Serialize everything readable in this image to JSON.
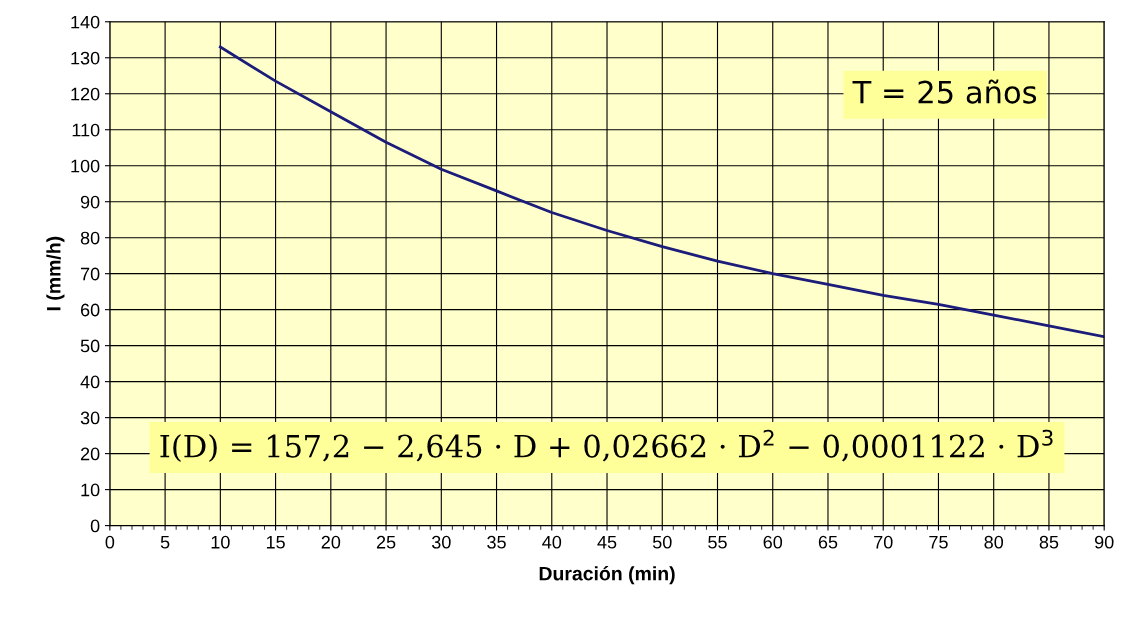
{
  "chart_data": {
    "type": "line",
    "xlabel": "Duración (min)",
    "ylabel": "I (mm/h)",
    "x": [
      10,
      15,
      20,
      25,
      30,
      35,
      40,
      45,
      50,
      55,
      60,
      65,
      70,
      75,
      80,
      85,
      90
    ],
    "values": [
      133,
      123.5,
      115,
      106.5,
      99,
      93,
      87,
      82,
      77.5,
      73.5,
      70,
      67,
      64,
      61.5,
      58.5,
      55.5,
      52.5
    ],
    "color": "#1c1c7a",
    "xlim": [
      0,
      90
    ],
    "ylim": [
      0,
      140
    ],
    "xticks": [
      0,
      5,
      10,
      15,
      20,
      25,
      30,
      35,
      40,
      45,
      50,
      55,
      60,
      65,
      70,
      75,
      80,
      85,
      90
    ],
    "yticks": [
      0,
      10,
      20,
      30,
      40,
      50,
      60,
      70,
      80,
      90,
      100,
      110,
      120,
      130,
      140
    ],
    "grid": true,
    "annotations": [
      "T = 25 años",
      "I(D) = 157,2 − 2,645 · D + 0,02662 · D$^{2}$ − 0,0001122 · D$^{3}$"
    ]
  }
}
